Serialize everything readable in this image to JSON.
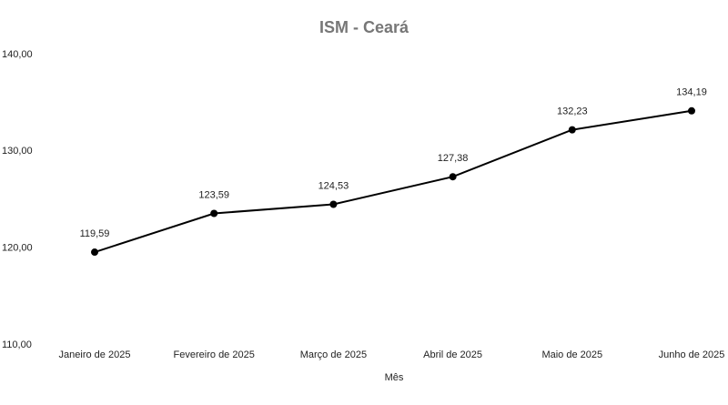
{
  "chart_data": {
    "type": "line",
    "title": "ISM - Ceará",
    "x_label": "Mês",
    "categories": [
      "Janeiro de 2025",
      "Fevereiro de 2025",
      "Março de 2025",
      "Abril de 2025",
      "Maio de 2025",
      "Junho de 2025"
    ],
    "values": [
      119.59,
      123.59,
      124.53,
      127.38,
      132.23,
      134.19
    ],
    "value_labels": [
      "119,59",
      "123,59",
      "124,53",
      "127,38",
      "132,23",
      "134,19"
    ],
    "color": "#000000",
    "ylim": [
      110,
      140
    ],
    "yticks": [
      {
        "value": 110,
        "label": "110,00"
      },
      {
        "value": 120,
        "label": "120,00"
      },
      {
        "value": 130,
        "label": "130,00"
      },
      {
        "value": 140,
        "label": "140,00"
      }
    ],
    "grid": false
  }
}
